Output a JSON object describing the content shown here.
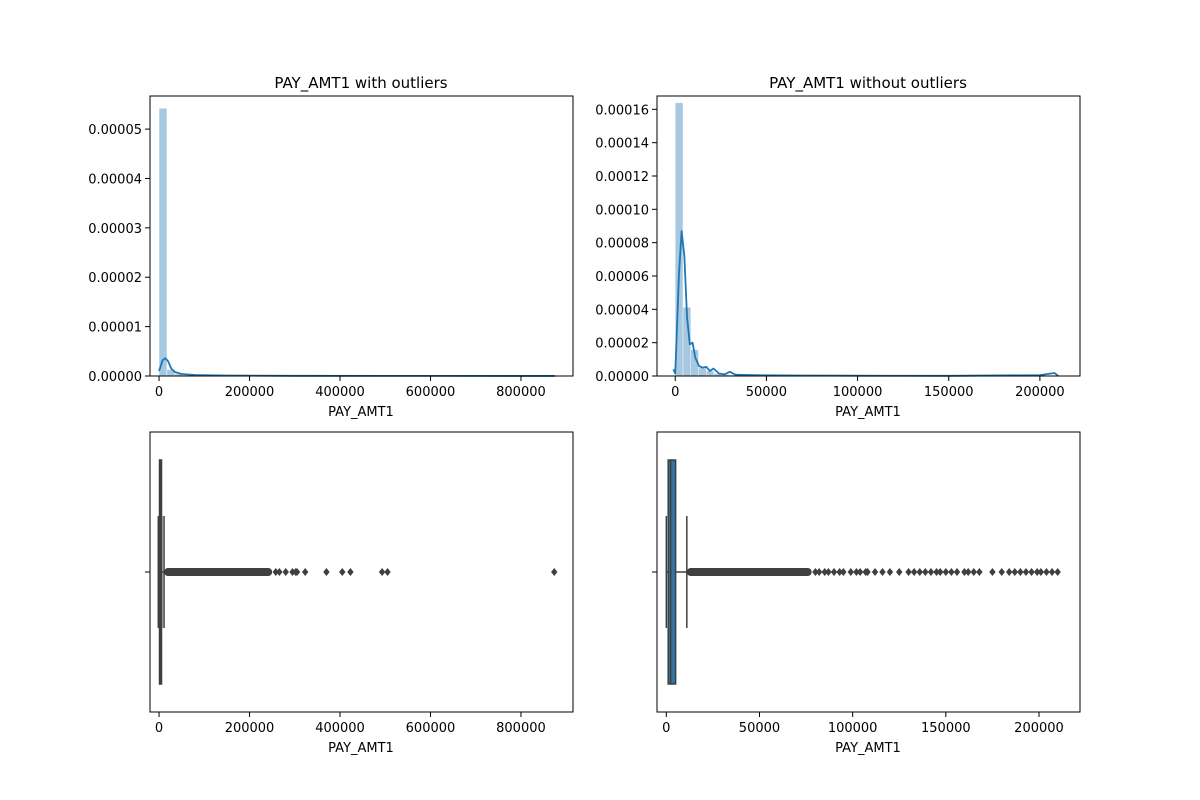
{
  "chart_data": [
    {
      "type": "histogram",
      "title": "PAY_AMT1 with outliers",
      "xlabel": "PAY_AMT1",
      "ylabel": "",
      "xlim": [
        -20000,
        915000
      ],
      "ylim": [
        0,
        5.67e-05
      ],
      "xticks": [
        0,
        200000,
        400000,
        600000,
        800000
      ],
      "xtick_labels": [
        "0",
        "200000",
        "400000",
        "600000",
        "800000"
      ],
      "yticks": [
        0,
        1e-05,
        2e-05,
        3e-05,
        4e-05,
        5e-05
      ],
      "ytick_labels": [
        "0.00000",
        "0.00001",
        "0.00002",
        "0.00003",
        "0.00004",
        "0.00005"
      ],
      "bar_color": "#a6c8e0",
      "line_color": "#1f77b4",
      "bins": [
        {
          "x0": 0,
          "x1": 17500,
          "y": 5.42e-05
        },
        {
          "x0": 17500,
          "x1": 35000,
          "y": 1.3e-06
        },
        {
          "x0": 35000,
          "x1": 52500,
          "y": 4e-07
        },
        {
          "x0": 52500,
          "x1": 70000,
          "y": 2e-07
        },
        {
          "x0": 70000,
          "x1": 87500,
          "y": 1e-07
        }
      ],
      "kde": [
        [
          0,
          1e-06
        ],
        [
          8000,
          3.2e-06
        ],
        [
          14000,
          3.6e-06
        ],
        [
          20000,
          3e-06
        ],
        [
          27000,
          1.5e-06
        ],
        [
          35000,
          8e-07
        ],
        [
          50000,
          4e-07
        ],
        [
          80000,
          2e-07
        ],
        [
          150000,
          1e-07
        ],
        [
          300000,
          4e-08
        ],
        [
          600000,
          2e-08
        ],
        [
          875000,
          1e-08
        ]
      ]
    },
    {
      "type": "histogram",
      "title": "PAY_AMT1 without outliers",
      "xlabel": "PAY_AMT1",
      "ylabel": "",
      "xlim": [
        -10000,
        222000
      ],
      "ylim": [
        0,
        0.000168
      ],
      "xticks": [
        0,
        50000,
        100000,
        150000,
        200000
      ],
      "xtick_labels": [
        "0",
        "50000",
        "100000",
        "150000",
        "200000"
      ],
      "yticks": [
        0,
        2e-05,
        4e-05,
        6e-05,
        8e-05,
        0.0001,
        0.00012,
        0.00014,
        0.00016
      ],
      "ytick_labels": [
        "0.00000",
        "0.00002",
        "0.00004",
        "0.00006",
        "0.00008",
        "0.00010",
        "0.00012",
        "0.00014",
        "0.00016"
      ],
      "bar_color": "#a6c8e0",
      "line_color": "#1f77b4",
      "bins": [
        {
          "x0": 0,
          "x1": 4250,
          "y": 0.000164
        },
        {
          "x0": 4250,
          "x1": 8500,
          "y": 4.12e-05
        },
        {
          "x0": 8500,
          "x1": 12750,
          "y": 1.58e-05
        },
        {
          "x0": 12750,
          "x1": 17000,
          "y": 4.8e-06
        },
        {
          "x0": 17000,
          "x1": 21250,
          "y": 3e-06
        },
        {
          "x0": 21250,
          "x1": 25500,
          "y": 1.5e-06
        },
        {
          "x0": 25500,
          "x1": 29750,
          "y": 9e-07
        },
        {
          "x0": 29750,
          "x1": 34000,
          "y": 6e-07
        },
        {
          "x0": 34000,
          "x1": 38250,
          "y": 4e-07
        },
        {
          "x0": 38250,
          "x1": 42500,
          "y": 3e-07
        }
      ],
      "kde": [
        [
          -1000,
          4e-06
        ],
        [
          0,
          1.5e-06
        ],
        [
          1000,
          3e-05
        ],
        [
          2000,
          6e-05
        ],
        [
          3500,
          8.7e-05
        ],
        [
          5000,
          7.2e-05
        ],
        [
          6500,
          3.5e-05
        ],
        [
          8000,
          1.9e-05
        ],
        [
          9500,
          2e-05
        ],
        [
          11000,
          1.1e-05
        ],
        [
          13000,
          6e-06
        ],
        [
          15000,
          5e-06
        ],
        [
          17000,
          5.5e-06
        ],
        [
          19000,
          3e-06
        ],
        [
          21000,
          4.5e-06
        ],
        [
          24000,
          1.5e-06
        ],
        [
          27000,
          1e-06
        ],
        [
          30000,
          2.5e-06
        ],
        [
          33000,
          8e-07
        ],
        [
          40000,
          6e-07
        ],
        [
          50000,
          4e-07
        ],
        [
          70000,
          3e-07
        ],
        [
          100000,
          2e-07
        ],
        [
          150000,
          1e-07
        ],
        [
          200000,
          5e-07
        ],
        [
          208000,
          1.8e-06
        ],
        [
          210000,
          1e-07
        ]
      ]
    },
    {
      "type": "box",
      "title": "",
      "xlabel": "PAY_AMT1",
      "xlim": [
        -20000,
        915000
      ],
      "xticks": [
        0,
        200000,
        400000,
        600000,
        800000
      ],
      "xtick_labels": [
        "0",
        "200000",
        "400000",
        "600000",
        "800000"
      ],
      "box_color": "#3f3f3f",
      "whisker_low": 0,
      "q1": 1000,
      "median": 2100,
      "q3": 5006,
      "whisker_high": 11000,
      "outlier_dense_range": [
        11000,
        250000
      ],
      "outliers": [
        258000,
        266000,
        280000,
        295000,
        302000,
        305000,
        323000,
        370000,
        405000,
        423000,
        493000,
        505000,
        873552
      ]
    },
    {
      "type": "box",
      "title": "",
      "xlabel": "PAY_AMT1",
      "xlim": [
        -5000,
        222000
      ],
      "xticks": [
        0,
        50000,
        100000,
        150000,
        200000
      ],
      "xtick_labels": [
        "0",
        "50000",
        "100000",
        "150000",
        "200000"
      ],
      "box_color": "#3274a1",
      "whisker_low": 0,
      "q1": 1000,
      "median": 2300,
      "q3": 5000,
      "whisker_high": 11000,
      "outlier_dense_range": [
        11000,
        78000
      ],
      "outliers": [
        80000,
        82000,
        85000,
        87000,
        90000,
        93000,
        95000,
        99000,
        102000,
        104000,
        107000,
        108000,
        112000,
        116000,
        120000,
        125000,
        130000,
        133000,
        136000,
        139000,
        142000,
        145000,
        147000,
        150000,
        153000,
        156000,
        160000,
        162000,
        165000,
        168000,
        175000,
        180000,
        184000,
        187000,
        190000,
        193000,
        196000,
        199000,
        201000,
        204000,
        207000,
        210000
      ]
    }
  ]
}
